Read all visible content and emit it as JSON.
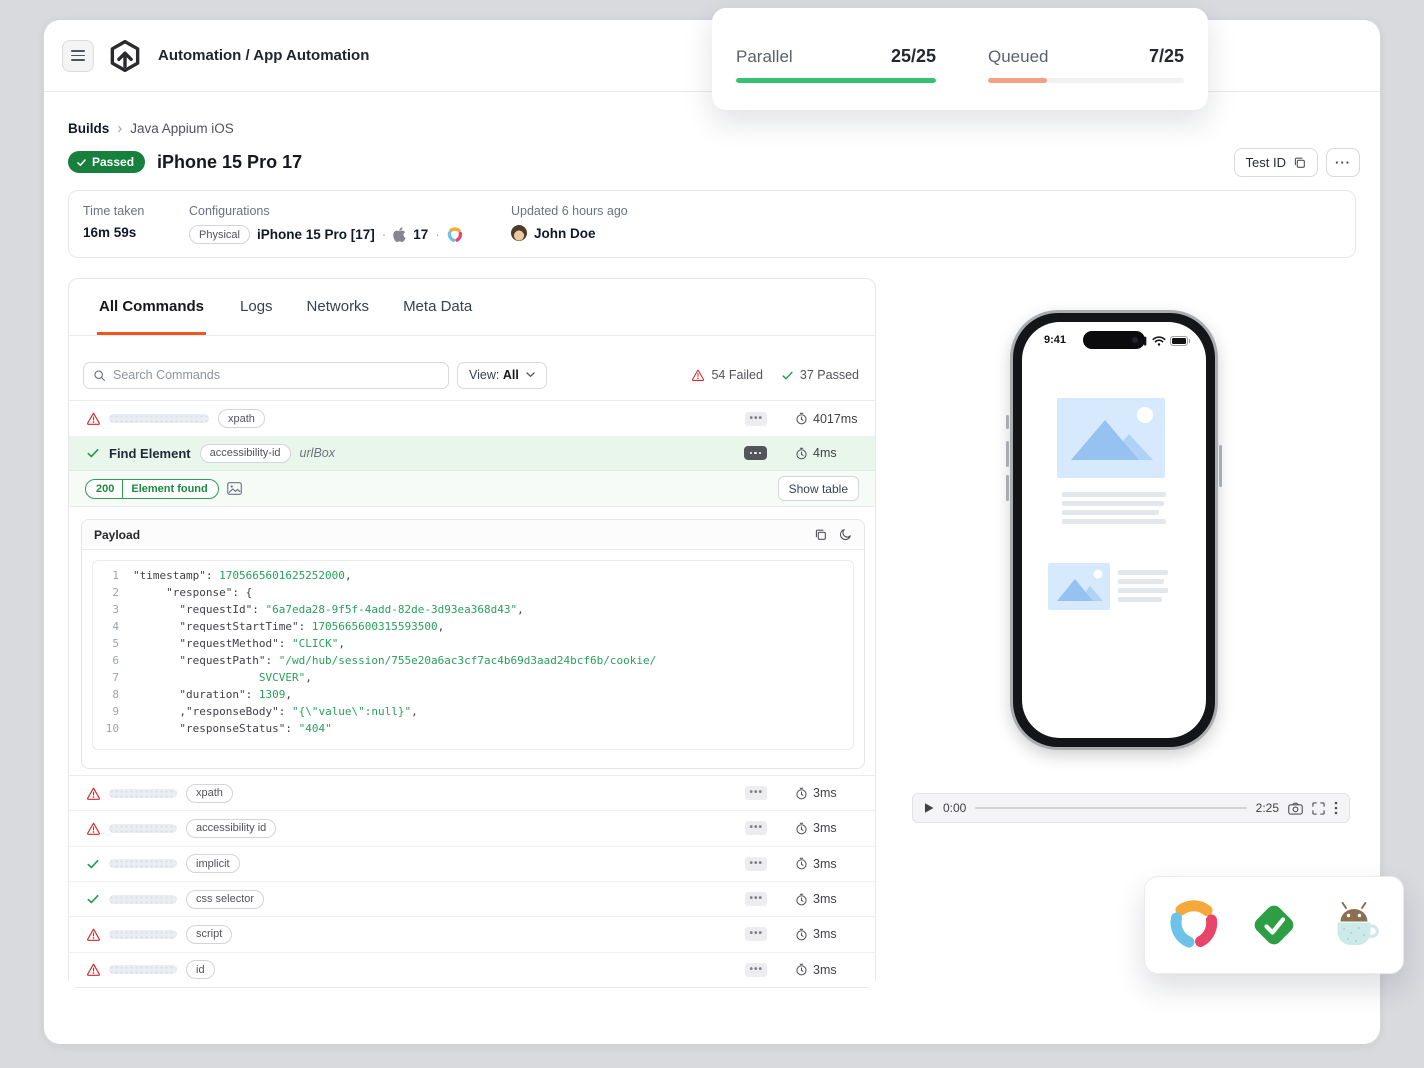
{
  "app": {
    "title": "Automation / App Automation"
  },
  "concurrency": {
    "parallel_label": "Parallel",
    "parallel_value": "25/25",
    "parallel_pct": 100,
    "queued_label": "Queued",
    "queued_value": "7/25",
    "queued_pct": 30
  },
  "breadcrumb": {
    "root": "Builds",
    "separator": "›",
    "current": "Java Appium iOS"
  },
  "build": {
    "status_label": "Passed",
    "title": "iPhone 15 Pro 17",
    "test_id_label": "Test ID"
  },
  "summary": {
    "time_taken_label": "Time taken",
    "time_taken_value": "16m 59s",
    "config_label": "Configurations",
    "config_type": "Physical",
    "device": "iPhone 15 Pro [17]",
    "os_version": "17",
    "dot": "·",
    "updated_label": "Updated 6 hours ago",
    "user_name": "John Doe"
  },
  "tabs": [
    {
      "label": "All Commands",
      "active": true
    },
    {
      "label": "Logs",
      "active": false
    },
    {
      "label": "Networks",
      "active": false
    },
    {
      "label": "Meta Data",
      "active": false
    }
  ],
  "toolbar": {
    "search_placeholder": "Search Commands",
    "view_label": "View:",
    "view_value": "All",
    "failed_count": "54 Failed",
    "passed_count": "37 Passed"
  },
  "commands_top": [
    {
      "status": "failed",
      "badge": "xpath",
      "time": "4017ms"
    }
  ],
  "selected_command": {
    "name": "Find Element",
    "badge": "accessibility-id",
    "target": "urlBox",
    "time": "4ms"
  },
  "result": {
    "code": "200",
    "message": "Element found",
    "show_table_label": "Show table"
  },
  "payload": {
    "title": "Payload",
    "lines": [
      {
        "n": "1",
        "parts": [
          [
            "k",
            "\"timestamp\": "
          ],
          [
            "v",
            "1705665601625252000"
          ],
          [
            "k",
            ","
          ]
        ]
      },
      {
        "n": "2",
        "parts": [
          [
            "k",
            "     \"response\": {"
          ]
        ]
      },
      {
        "n": "3",
        "parts": [
          [
            "k",
            "       \"requestId\": "
          ],
          [
            "v",
            "\"6a7eda28-9f5f-4add-82de-3d93ea368d43\""
          ],
          [
            "k",
            ","
          ]
        ]
      },
      {
        "n": "4",
        "parts": [
          [
            "k",
            "       \"requestStartTime\": "
          ],
          [
            "v",
            "1705665600315593500"
          ],
          [
            "k",
            ","
          ]
        ]
      },
      {
        "n": "5",
        "parts": [
          [
            "k",
            "       \"requestMethod\": "
          ],
          [
            "v",
            "\"CLICK\""
          ],
          [
            "k",
            ","
          ]
        ]
      },
      {
        "n": "6",
        "parts": [
          [
            "k",
            "       \"requestPath\": "
          ],
          [
            "v",
            "\"/wd/hub/session/755e20a6ac3cf7ac4b69d3aad24bcf6b/cookie/"
          ]
        ]
      },
      {
        "n": "7",
        "parts": [
          [
            "v",
            "                   SVCVER\""
          ],
          [
            "k",
            ","
          ]
        ]
      },
      {
        "n": "8",
        "parts": [
          [
            "k",
            "       \"duration\": "
          ],
          [
            "v",
            "1309"
          ],
          [
            "k",
            ","
          ]
        ]
      },
      {
        "n": "9",
        "parts": [
          [
            "k",
            "       ,\"responseBody\": "
          ],
          [
            "v",
            "\"{\\\"value\\\":null}\""
          ],
          [
            "k",
            ","
          ]
        ]
      },
      {
        "n": "10",
        "parts": [
          [
            "k",
            "       \"responseStatus\": "
          ],
          [
            "v",
            "\"404\""
          ]
        ]
      }
    ]
  },
  "commands_bottom": [
    {
      "status": "failed",
      "badge": "xpath",
      "time": "3ms"
    },
    {
      "status": "failed",
      "badge": "accessibility id",
      "time": "3ms"
    },
    {
      "status": "passed",
      "badge": "implicit",
      "time": "3ms"
    },
    {
      "status": "passed",
      "badge": "css selector",
      "time": "3ms"
    },
    {
      "status": "failed",
      "badge": "script",
      "time": "3ms"
    },
    {
      "status": "failed",
      "badge": "id",
      "time": "3ms"
    }
  ],
  "device_preview": {
    "clock": "9:41"
  },
  "player": {
    "current_time": "0:00",
    "duration": "2:25"
  },
  "integrations": {
    "icons": [
      "appium-icon",
      "verified-check-icon",
      "espresso-android-icon"
    ]
  },
  "colors": {
    "accent_orange": "#f1561c",
    "passed_green": "#17803d",
    "progress_green": "#35c173",
    "queued_salmon": "#f2a184",
    "failed_red": "#dc2626",
    "code_green": "#28a05b",
    "selected_row_green": "#e9f6ec",
    "page_background": "#d9dade"
  }
}
